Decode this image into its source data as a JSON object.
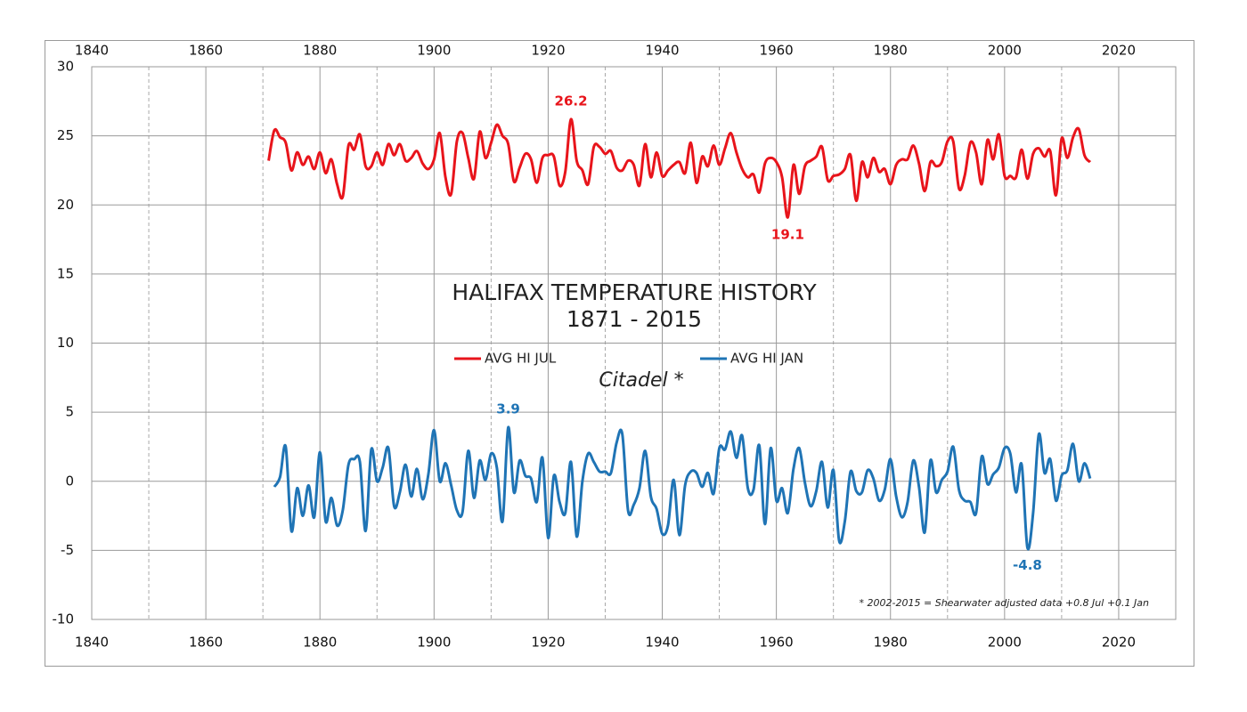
{
  "chart_data": {
    "type": "line",
    "title": "HALIFAX TEMPERATURE HISTORY",
    "subtitle": "1871 - 2015",
    "annotations": [
      "Citadel *",
      "* 2002-2015  = Shearwater adjusted data +0.8 Jul +0.1 Jan"
    ],
    "x": [
      1871,
      1872,
      1873,
      1874,
      1875,
      1876,
      1877,
      1878,
      1879,
      1880,
      1881,
      1882,
      1883,
      1884,
      1885,
      1886,
      1887,
      1888,
      1889,
      1890,
      1891,
      1892,
      1893,
      1894,
      1895,
      1896,
      1897,
      1898,
      1899,
      1900,
      1901,
      1902,
      1903,
      1904,
      1905,
      1906,
      1907,
      1908,
      1909,
      1910,
      1911,
      1912,
      1913,
      1914,
      1915,
      1916,
      1917,
      1918,
      1919,
      1920,
      1921,
      1922,
      1923,
      1924,
      1925,
      1926,
      1927,
      1928,
      1929,
      1930,
      1931,
      1932,
      1933,
      1934,
      1935,
      1936,
      1937,
      1938,
      1939,
      1940,
      1941,
      1942,
      1943,
      1944,
      1945,
      1946,
      1947,
      1948,
      1949,
      1950,
      1951,
      1952,
      1953,
      1954,
      1955,
      1956,
      1957,
      1958,
      1959,
      1960,
      1961,
      1962,
      1963,
      1964,
      1965,
      1966,
      1967,
      1968,
      1969,
      1970,
      1971,
      1972,
      1973,
      1974,
      1975,
      1976,
      1977,
      1978,
      1979,
      1980,
      1981,
      1982,
      1983,
      1984,
      1985,
      1986,
      1987,
      1988,
      1989,
      1990,
      1991,
      1992,
      1993,
      1994,
      1995,
      1996,
      1997,
      1998,
      1999,
      2000,
      2001,
      2002,
      2003,
      2004,
      2005,
      2006,
      2007,
      2008,
      2009,
      2010,
      2011,
      2012,
      2013,
      2014,
      2015
    ],
    "series": [
      {
        "name": "AVG HI JUL",
        "color": "#e8141b",
        "values": [
          23.2,
          25.4,
          24.9,
          24.5,
          22.5,
          23.8,
          22.9,
          23.5,
          22.6,
          23.8,
          22.3,
          23.3,
          21.5,
          20.6,
          24.3,
          24.0,
          25.1,
          22.8,
          22.8,
          23.8,
          22.9,
          24.4,
          23.6,
          24.4,
          23.2,
          23.4,
          23.9,
          23.0,
          22.6,
          23.3,
          25.2,
          22.0,
          20.8,
          24.6,
          25.2,
          23.4,
          21.9,
          25.3,
          23.4,
          24.5,
          25.8,
          25.0,
          24.4,
          21.7,
          22.7,
          23.7,
          23.3,
          21.6,
          23.4,
          23.6,
          23.5,
          21.4,
          22.4,
          26.2,
          23.2,
          22.5,
          21.5,
          24.2,
          24.2,
          23.7,
          23.9,
          22.7,
          22.5,
          23.2,
          22.9,
          21.4,
          24.4,
          22.0,
          23.8,
          22.1,
          22.5,
          22.9,
          23.1,
          22.3,
          24.5,
          21.6,
          23.5,
          22.8,
          24.3,
          22.9,
          24.1,
          25.2,
          23.8,
          22.6,
          22.0,
          22.2,
          20.9,
          23.0,
          23.4,
          23.1,
          22.0,
          19.1,
          22.9,
          20.8,
          22.8,
          23.2,
          23.5,
          24.2,
          21.8,
          22.1,
          22.2,
          22.6,
          23.6,
          20.3,
          23.1,
          22.0,
          23.4,
          22.4,
          22.6,
          21.5,
          22.9,
          23.3,
          23.3,
          24.3,
          23.0,
          21.0,
          23.1,
          22.8,
          23.1,
          24.6,
          24.6,
          21.2,
          22.1,
          24.5,
          23.8,
          21.5,
          24.7,
          23.3,
          25.1,
          22.1,
          22.1,
          22.0,
          24.0,
          21.9,
          23.7,
          24.1,
          23.5,
          23.9,
          20.7,
          24.8,
          23.4,
          24.9,
          25.5,
          23.6,
          23.1
        ],
        "value_labels": [
          null,
          null,
          null,
          null,
          null,
          null,
          null,
          null,
          null,
          null,
          null,
          null,
          null,
          null,
          null,
          null,
          null,
          null,
          null,
          null,
          null,
          null,
          null,
          null,
          null,
          null,
          null,
          null,
          null,
          null,
          null,
          null,
          null,
          null,
          null,
          null,
          null,
          null,
          null,
          null,
          null,
          null,
          null,
          null,
          null,
          null,
          null,
          null,
          null,
          null,
          null,
          null,
          null,
          "26.2",
          null,
          null,
          null,
          null,
          null,
          null,
          null,
          null,
          null,
          null,
          null,
          null,
          null,
          null,
          null,
          null,
          null,
          null,
          null,
          null,
          null,
          null,
          null,
          null,
          null,
          null,
          null,
          null,
          null,
          null,
          null,
          null,
          null,
          null,
          null,
          null,
          null,
          "19.1",
          null,
          null,
          null,
          null,
          null,
          null,
          null,
          null,
          null,
          null,
          null,
          null,
          null,
          null,
          null,
          null,
          null,
          null,
          null,
          null,
          null,
          null,
          null,
          null,
          null,
          null,
          null,
          null,
          null,
          null,
          null,
          null,
          null,
          null,
          null,
          null,
          null,
          null,
          null,
          null,
          null,
          null,
          null,
          null,
          null,
          null,
          null,
          null,
          null,
          null,
          null,
          null,
          null
        ]
      },
      {
        "name": "AVG HI JAN",
        "color": "#1f74b5",
        "values": [
          null,
          -0.4,
          0.3,
          2.5,
          -3.6,
          -0.5,
          -2.5,
          -0.3,
          -2.6,
          2.1,
          -2.9,
          -1.2,
          -3.2,
          -2.1,
          1.2,
          1.6,
          1.4,
          -3.6,
          2.3,
          0.0,
          1.0,
          2.4,
          -1.8,
          -0.8,
          1.2,
          -1.1,
          0.9,
          -1.3,
          0.5,
          3.7,
          0.0,
          1.3,
          -0.3,
          -2.1,
          -2.2,
          2.2,
          -1.2,
          1.5,
          0.1,
          2.0,
          1.0,
          -2.9,
          3.9,
          -0.8,
          1.5,
          0.4,
          0.2,
          -1.5,
          1.7,
          -4.1,
          0.4,
          -1.5,
          -2.3,
          1.4,
          -4.0,
          0.0,
          2.0,
          1.4,
          0.7,
          0.7,
          0.6,
          2.8,
          3.4,
          -2.1,
          -1.7,
          -0.5,
          2.2,
          -1.1,
          -2.0,
          -3.8,
          -3.2,
          0.1,
          -3.9,
          -0.3,
          0.7,
          0.6,
          -0.4,
          0.6,
          -0.9,
          2.4,
          2.3,
          3.6,
          1.7,
          3.3,
          -0.5,
          -0.6,
          2.6,
          -3.1,
          2.4,
          -1.4,
          -0.5,
          -2.3,
          0.9,
          2.4,
          -0.1,
          -1.8,
          -0.7,
          1.4,
          -1.9,
          0.8,
          -4.3,
          -2.9,
          0.7,
          -0.7,
          -0.8,
          0.8,
          0.2,
          -1.4,
          -0.6,
          1.6,
          -1.1,
          -2.6,
          -1.5,
          1.5,
          -0.4,
          -3.7,
          1.5,
          -0.8,
          0.1,
          0.7,
          2.5,
          -0.6,
          -1.4,
          -1.5,
          -2.3,
          1.8,
          -0.2,
          0.5,
          1.0,
          2.4,
          2.0,
          -0.8,
          1.2,
          -4.8,
          -2.3,
          3.4,
          0.6,
          1.6,
          -1.4,
          0.4,
          0.8,
          2.7,
          0.0,
          1.3,
          0.2
        ],
        "value_labels": [
          null,
          null,
          null,
          null,
          null,
          null,
          null,
          null,
          null,
          null,
          null,
          null,
          null,
          null,
          null,
          null,
          null,
          null,
          null,
          null,
          null,
          null,
          null,
          null,
          null,
          null,
          null,
          null,
          null,
          null,
          null,
          null,
          null,
          null,
          null,
          null,
          null,
          null,
          null,
          null,
          null,
          null,
          "3.9",
          null,
          null,
          null,
          null,
          null,
          null,
          null,
          null,
          null,
          null,
          null,
          null,
          null,
          null,
          null,
          null,
          null,
          null,
          null,
          null,
          null,
          null,
          null,
          null,
          null,
          null,
          null,
          null,
          null,
          null,
          null,
          null,
          null,
          null,
          null,
          null,
          null,
          null,
          null,
          null,
          null,
          null,
          null,
          null,
          null,
          null,
          null,
          null,
          null,
          null,
          null,
          null,
          null,
          null,
          null,
          null,
          null,
          null,
          null,
          null,
          null,
          null,
          null,
          null,
          null,
          null,
          null,
          null,
          null,
          null,
          null,
          null,
          null,
          null,
          null,
          null,
          null,
          null,
          null,
          null,
          null,
          null,
          null,
          null,
          null,
          null,
          null,
          null,
          null,
          null,
          "-4.8",
          null,
          null,
          null,
          null,
          null,
          null,
          null,
          null,
          null,
          null,
          null
        ]
      }
    ],
    "xlim": [
      1840,
      2030
    ],
    "xticks": [
      1840,
      1860,
      1880,
      1900,
      1920,
      1940,
      1960,
      1980,
      2000,
      2020
    ],
    "xminorticks": [
      1850,
      1870,
      1890,
      1910,
      1930,
      1950,
      1970,
      1990,
      2010
    ],
    "ylim": [
      -10,
      30
    ],
    "yticks": [
      -10,
      -5,
      0,
      5,
      10,
      15,
      20,
      25,
      30
    ],
    "grid": true
  }
}
